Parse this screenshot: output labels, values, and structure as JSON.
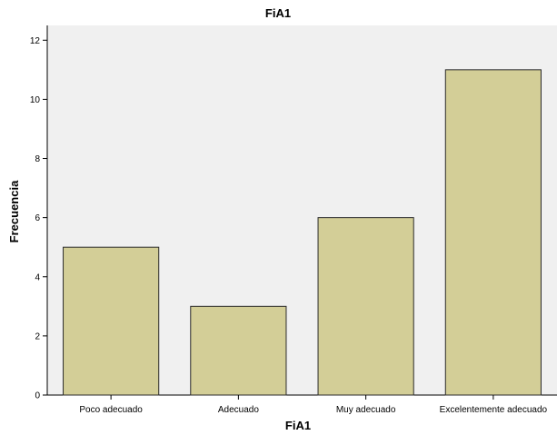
{
  "chart_data": {
    "type": "bar",
    "title": "FiA1",
    "xlabel": "FiA1",
    "ylabel": "Frecuencia",
    "categories": [
      "Poco adecuado",
      "Adecuado",
      "Muy adecuado",
      "Excelentemente adecuado"
    ],
    "values": [
      5,
      3,
      6,
      11
    ],
    "ylim": [
      0,
      12.5
    ],
    "yticks": [
      "0",
      "2",
      "4",
      "6",
      "8",
      "10",
      "12"
    ],
    "grid": false,
    "colors": {
      "bar_fill": "#d3ce97",
      "bar_stroke": "#2b2b2b",
      "plot_background": "#f0f0f0"
    }
  }
}
